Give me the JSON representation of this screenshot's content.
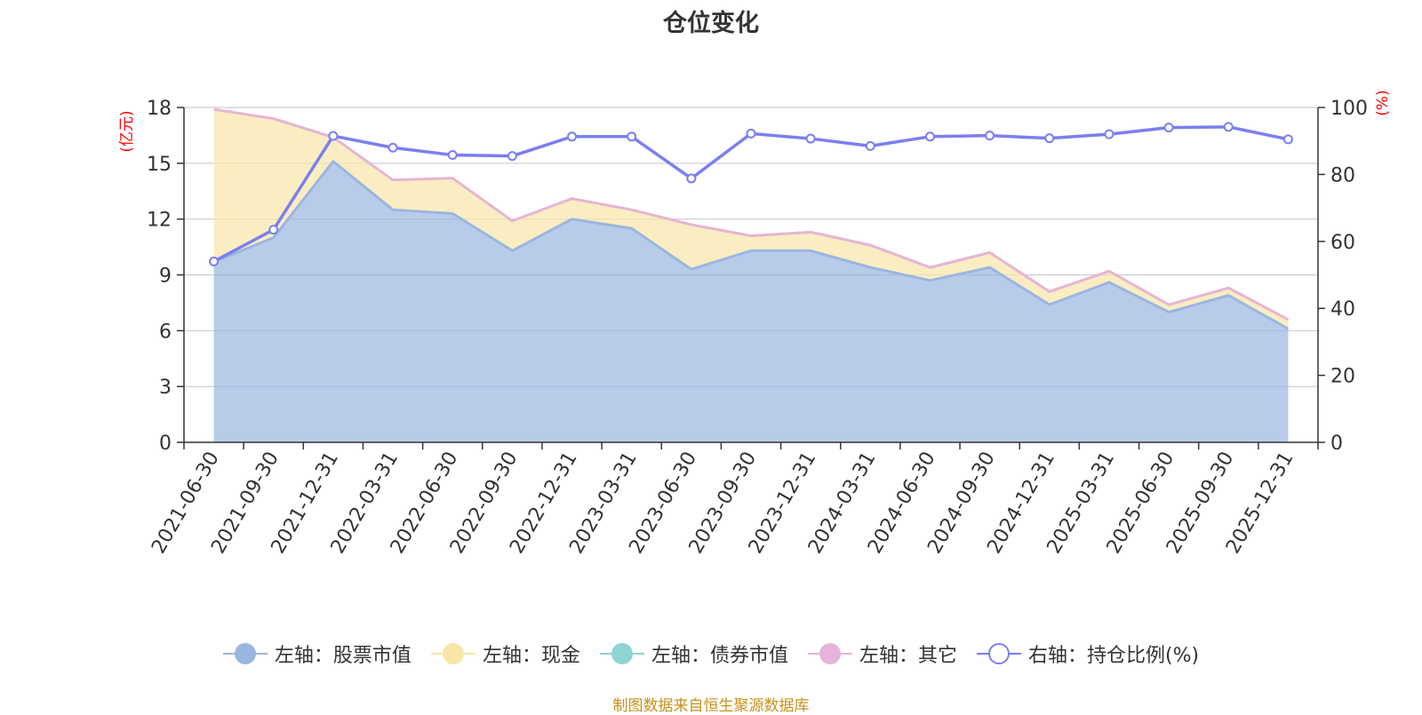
{
  "chart_data": {
    "type": "area",
    "title": "仓位变化",
    "left_axis_unit": "(亿元)",
    "right_axis_unit": "(%)",
    "left_ylim": [
      0,
      18
    ],
    "left_ticks": [
      0,
      3,
      6,
      9,
      12,
      15,
      18
    ],
    "right_ylim": [
      0,
      100
    ],
    "right_ticks": [
      0,
      20,
      40,
      60,
      80,
      100
    ],
    "categories": [
      "2021-06-30",
      "2021-09-30",
      "2021-12-31",
      "2022-03-31",
      "2022-06-30",
      "2022-09-30",
      "2022-12-31",
      "2023-03-31",
      "2023-06-30",
      "2023-09-30",
      "2023-12-31",
      "2024-03-31",
      "2024-06-30",
      "2024-09-30",
      "2024-12-31",
      "2025-03-31",
      "2025-06-30",
      "2025-09-30",
      "2025-12-31"
    ],
    "series": [
      {
        "name": "左轴：股票市值",
        "axis": "left",
        "stack": "total",
        "color": "#9ab6e0",
        "values": [
          9.7,
          11.0,
          15.1,
          12.5,
          12.3,
          10.3,
          12.0,
          11.5,
          9.3,
          10.3,
          10.3,
          9.4,
          8.7,
          9.4,
          7.4,
          8.6,
          7.0,
          7.9,
          6.1
        ]
      },
      {
        "name": "左轴：现金",
        "axis": "left",
        "stack": "total",
        "color": "#f8e6a6",
        "values": [
          8.2,
          6.4,
          1.3,
          1.6,
          1.9,
          1.6,
          1.1,
          1.0,
          2.4,
          0.8,
          1.0,
          1.2,
          0.7,
          0.8,
          0.7,
          0.6,
          0.4,
          0.4,
          0.5
        ]
      },
      {
        "name": "左轴：债券市值",
        "axis": "left",
        "stack": "total",
        "color": "#8fd3d3",
        "values": [
          0,
          0,
          0,
          0,
          0,
          0,
          0,
          0,
          0,
          0,
          0,
          0,
          0,
          0,
          0,
          0,
          0,
          0,
          0
        ]
      },
      {
        "name": "左轴：其它",
        "axis": "left",
        "stack": "total",
        "color": "#e6b4d8",
        "values": [
          0,
          0,
          0,
          0,
          0,
          0,
          0,
          0,
          0,
          0,
          0,
          0,
          0,
          0,
          0,
          0,
          0,
          0,
          0
        ]
      },
      {
        "name": "右轴：持仓比例(%)",
        "axis": "right",
        "color": "#7b7ff0",
        "values": [
          54.0,
          63.5,
          91.5,
          88.0,
          85.8,
          85.5,
          91.3,
          91.3,
          78.8,
          92.2,
          90.7,
          88.5,
          91.3,
          91.6,
          90.8,
          92.0,
          94.0,
          94.2,
          90.5
        ]
      }
    ],
    "legend": [
      {
        "label": "左轴：股票市值",
        "color": "#9ab6e0",
        "style": "filled"
      },
      {
        "label": "左轴：现金",
        "color": "#f8e6a6",
        "style": "filled"
      },
      {
        "label": "左轴：债券市值",
        "color": "#8fd3d3",
        "style": "filled"
      },
      {
        "label": "左轴：其它",
        "color": "#e6b4d8",
        "style": "filled"
      },
      {
        "label": "右轴：持仓比例(%)",
        "color": "#7b7ff0",
        "style": "hollow"
      }
    ],
    "grid": true,
    "legend_position": "bottom-center"
  },
  "source_note": "制图数据来自恒生聚源数据库"
}
